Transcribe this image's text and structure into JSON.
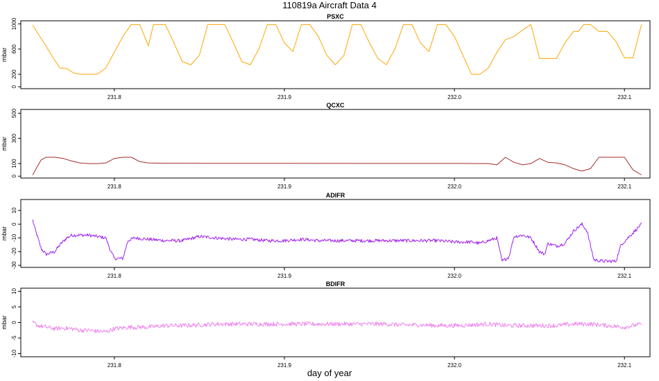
{
  "figure": {
    "title": "110819a   Aircraft Data 4",
    "xlabel": "day of year"
  },
  "chart_data": [
    {
      "type": "line",
      "title": "PSXC",
      "ylabel": "mbar",
      "color": "#ffa500",
      "xlim": [
        231.745,
        232.115
      ],
      "ylim": [
        -30,
        1050
      ],
      "xticks": [
        "231.8",
        "231.9",
        "232.0",
        "232.1"
      ],
      "yticks": [
        "0",
        "200",
        "600",
        "1000"
      ],
      "x": [
        231.752,
        231.755,
        231.76,
        231.765,
        231.768,
        231.772,
        231.776,
        231.78,
        231.785,
        231.79,
        231.795,
        231.8,
        231.805,
        231.81,
        231.815,
        231.82,
        231.823,
        231.826,
        231.83,
        231.835,
        231.84,
        231.845,
        231.85,
        231.855,
        231.86,
        231.865,
        231.87,
        231.875,
        231.88,
        231.885,
        231.89,
        231.895,
        231.9,
        231.905,
        231.91,
        231.915,
        231.92,
        231.925,
        231.93,
        231.935,
        231.94,
        231.945,
        231.95,
        231.955,
        231.96,
        231.965,
        231.97,
        231.975,
        231.98,
        231.985,
        231.99,
        231.995,
        232.0,
        232.005,
        232.01,
        232.015,
        232.02,
        232.025,
        232.03,
        232.035,
        232.04,
        232.045,
        232.05,
        232.055,
        232.06,
        232.065,
        232.07,
        232.073,
        232.076,
        232.08,
        232.085,
        232.09,
        232.095,
        232.1,
        232.105,
        232.11
      ],
      "y": [
        980,
        850,
        640,
        420,
        300,
        290,
        220,
        200,
        200,
        200,
        300,
        550,
        800,
        990,
        990,
        650,
        990,
        990,
        990,
        700,
        400,
        350,
        500,
        990,
        990,
        990,
        700,
        400,
        350,
        600,
        990,
        990,
        700,
        560,
        990,
        990,
        800,
        500,
        350,
        500,
        990,
        990,
        700,
        450,
        350,
        600,
        990,
        990,
        700,
        560,
        990,
        990,
        800,
        500,
        200,
        200,
        300,
        550,
        750,
        800,
        900,
        990,
        450,
        450,
        450,
        700,
        880,
        880,
        990,
        990,
        880,
        880,
        720,
        460,
        460,
        990
      ]
    },
    {
      "type": "line",
      "title": "QCXC",
      "ylabel": "mbar",
      "color": "#a52a2a",
      "xlim": [
        231.745,
        232.115
      ],
      "ylim": [
        -15,
        530
      ],
      "xticks": [
        "231.8",
        "231.9",
        "232.0",
        "232.1"
      ],
      "yticks": [
        "0",
        "100",
        "300",
        "500"
      ],
      "x": [
        231.752,
        231.754,
        231.757,
        231.76,
        231.765,
        231.77,
        231.775,
        231.78,
        231.785,
        231.79,
        231.795,
        231.8,
        231.805,
        231.81,
        231.815,
        231.82,
        231.83,
        231.85,
        231.9,
        231.95,
        232.0,
        232.02,
        232.025,
        232.03,
        232.035,
        232.04,
        232.045,
        232.05,
        232.055,
        232.06,
        232.065,
        232.07,
        232.075,
        232.08,
        232.085,
        232.09,
        232.095,
        232.1,
        232.105,
        232.11
      ],
      "y": [
        10,
        60,
        130,
        150,
        150,
        140,
        120,
        105,
        100,
        100,
        105,
        140,
        150,
        150,
        115,
        105,
        103,
        102,
        102,
        101,
        101,
        100,
        90,
        150,
        110,
        90,
        100,
        140,
        110,
        105,
        90,
        60,
        40,
        60,
        150,
        150,
        150,
        150,
        50,
        10
      ]
    },
    {
      "type": "line",
      "title": "ADIFR",
      "ylabel": "mbar",
      "color": "#a020f0",
      "xlim": [
        231.745,
        232.115
      ],
      "ylim": [
        -31.5,
        18
      ],
      "xticks": [
        "231.8",
        "231.9",
        "232.0",
        "232.1"
      ],
      "yticks": [
        "-30",
        "-20",
        "-10",
        "0",
        "10"
      ],
      "x": [
        231.752,
        231.753,
        231.755,
        231.757,
        231.76,
        231.765,
        231.768,
        231.772,
        231.775,
        231.78,
        231.785,
        231.79,
        231.795,
        231.798,
        231.8,
        231.805,
        231.808,
        231.812,
        231.82,
        231.83,
        231.84,
        231.85,
        231.86,
        231.87,
        231.88,
        231.89,
        231.9,
        231.91,
        231.92,
        231.93,
        231.94,
        231.95,
        231.96,
        231.97,
        231.98,
        231.99,
        232.0,
        232.01,
        232.015,
        232.02,
        232.025,
        232.028,
        232.032,
        232.035,
        232.04,
        232.045,
        232.05,
        232.053,
        232.055,
        232.06,
        232.065,
        232.07,
        232.075,
        232.078,
        232.082,
        232.088,
        232.095,
        232.098,
        232.102,
        232.106,
        232.11
      ],
      "y": [
        3,
        -2,
        -10,
        -18,
        -22,
        -20,
        -15,
        -10,
        -8,
        -8,
        -8,
        -9,
        -10,
        -20,
        -25,
        -25,
        -12,
        -10,
        -11,
        -12,
        -12,
        -9,
        -10,
        -11,
        -11,
        -12,
        -12,
        -11,
        -12,
        -12,
        -12,
        -12,
        -12,
        -12,
        -12,
        -12,
        -13,
        -13,
        -14,
        -12,
        -10,
        -27,
        -24,
        -9,
        -8,
        -10,
        -20,
        -22,
        -14,
        -16,
        -14,
        -5,
        0,
        -5,
        -26,
        -27,
        -27,
        -15,
        -10,
        -5,
        0
      ],
      "noise": 1.2
    },
    {
      "type": "line",
      "title": "BDIFR",
      "ylabel": "mbar",
      "color": "#ee82ee",
      "xlim": [
        231.745,
        232.115
      ],
      "ylim": [
        -11,
        11
      ],
      "xticks": [
        "231.8",
        "231.9",
        "232.0",
        "232.1"
      ],
      "yticks": [
        "-10",
        "-5",
        "0",
        "5",
        "10"
      ],
      "x": [
        231.752,
        231.755,
        231.76,
        231.765,
        231.77,
        231.775,
        231.78,
        231.785,
        231.79,
        231.795,
        231.8,
        231.81,
        231.82,
        231.83,
        231.84,
        231.85,
        231.86,
        231.87,
        231.88,
        231.89,
        231.9,
        231.91,
        231.92,
        231.93,
        231.94,
        231.95,
        231.96,
        231.97,
        231.98,
        231.99,
        232.0,
        232.01,
        232.02,
        232.03,
        232.04,
        232.05,
        232.06,
        232.07,
        232.08,
        232.09,
        232.1,
        232.11
      ],
      "y": [
        0,
        -1,
        -1.5,
        -2,
        -1.8,
        -2,
        -2.5,
        -2.5,
        -2.8,
        -3,
        -2,
        -1.5,
        -1.5,
        -1,
        -1,
        -0.8,
        -0.5,
        -0.5,
        -0.5,
        -0.5,
        -0.5,
        -0.5,
        -0.5,
        -0.5,
        -0.5,
        -0.5,
        -0.5,
        -0.8,
        -0.8,
        -1,
        -1,
        -0.8,
        -0.5,
        -1,
        -1,
        -1,
        -1,
        -0.5,
        -0.5,
        -1,
        -1.5,
        -0.5
      ],
      "noise": 0.7
    }
  ]
}
